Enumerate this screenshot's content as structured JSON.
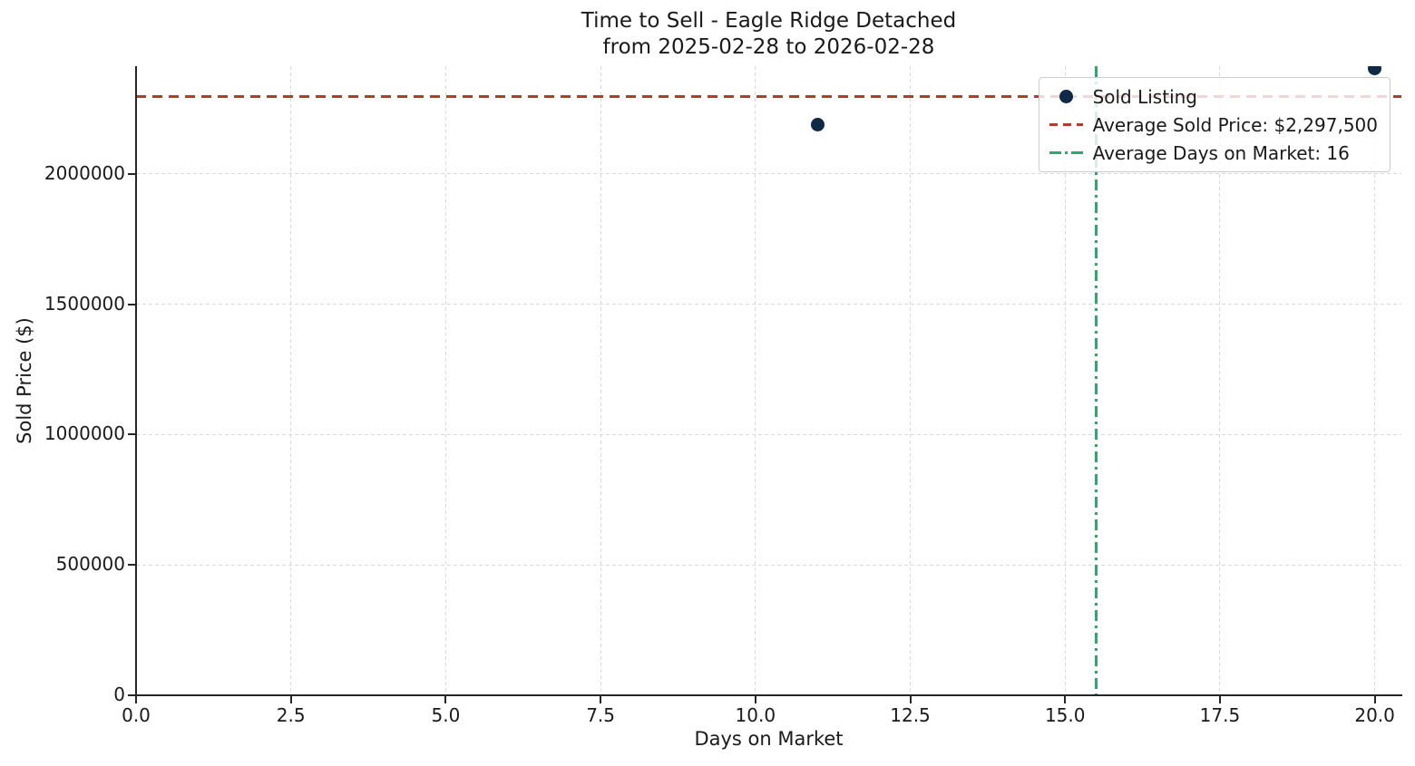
{
  "figure": {
    "title_line1": "Time to Sell - Eagle Ridge Detached",
    "title_line2": "from 2025-02-28 to 2026-02-28"
  },
  "chart_data": {
    "type": "scatter",
    "title": "Time to Sell - Eagle Ridge Detached\nfrom 2025-02-28 to 2026-02-28",
    "xlabel": "Days on Market",
    "ylabel": "Sold Price ($)",
    "series": [
      {
        "name": "Sold Listing",
        "points": [
          {
            "days_on_market": 11,
            "sold_price": 2190000
          },
          {
            "days_on_market": 20,
            "sold_price": 2405000
          }
        ]
      }
    ],
    "reference_lines": {
      "average_sold_price": {
        "orientation": "horizontal",
        "value": 2297500,
        "label": "Average Sold Price: $2,297,500",
        "style": "dashed"
      },
      "average_days_on_market": {
        "orientation": "vertical",
        "value": 15.5,
        "label_value": 16,
        "label": "Average Days on Market: 16",
        "style": "dashdot"
      }
    },
    "legend": {
      "position": "upper right",
      "entries": [
        {
          "label": "Sold Listing",
          "marker": "dot"
        },
        {
          "label": "Average Sold Price: $2,297,500",
          "marker": "dashed-line"
        },
        {
          "label": "Average Days on Market: 16",
          "marker": "dashdot-line"
        }
      ]
    },
    "xticks": {
      "values": [
        0,
        2.5,
        5,
        7.5,
        10,
        12.5,
        15,
        17.5,
        20
      ],
      "labels": [
        "0.0",
        "2.5",
        "5.0",
        "7.5",
        "10.0",
        "12.5",
        "15.0",
        "17.5",
        "20.0"
      ]
    },
    "yticks": {
      "values": [
        0,
        500000,
        1000000,
        1500000,
        2000000
      ],
      "labels": [
        "0",
        "500000",
        "1000000",
        "1500000",
        "2000000"
      ]
    },
    "xlim": [
      0,
      20.43
    ],
    "ylim": [
      0,
      2413000
    ],
    "grid": true
  },
  "colors": {
    "sold_point": "#0e2a47",
    "avg_price_line": "#b23a2e",
    "avg_dom_line": "#2fa86b",
    "grid_line": "#d9d9d9",
    "axis_line": "#262626",
    "text": "#1a1a1a",
    "legend_border": "#cccccc",
    "background": "#ffffff"
  }
}
